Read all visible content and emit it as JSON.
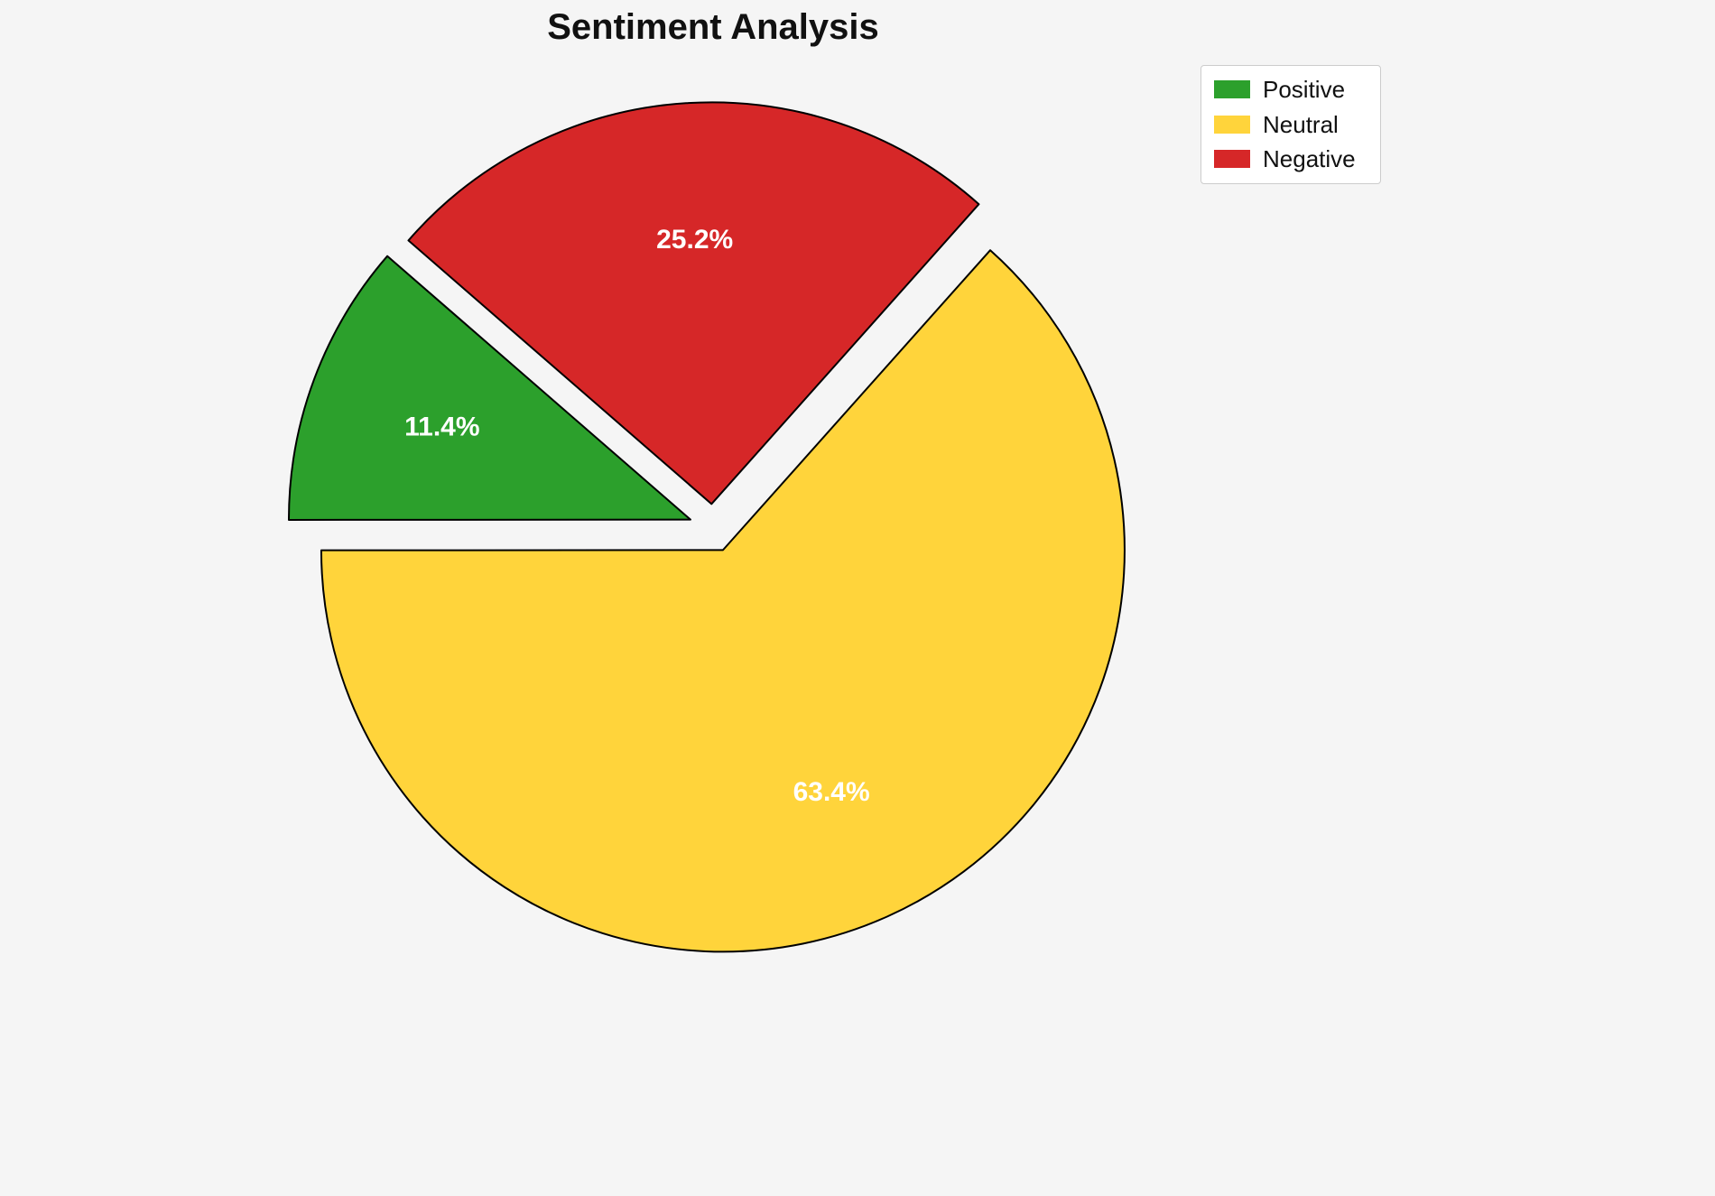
{
  "figure": {
    "background": "#f5f5f5"
  },
  "chart_data": {
    "type": "pie",
    "title": "Sentiment Analysis",
    "labels": [
      "Positive",
      "Neutral",
      "Negative"
    ],
    "values": [
      11.4,
      63.4,
      25.2
    ],
    "percent_labels": [
      "11.4%",
      "63.4%",
      "25.2%"
    ],
    "colors": [
      "#2ca02c",
      "#ffd43b",
      "#d62728"
    ],
    "edge_color": "#000000",
    "start_angle": 139,
    "counterclock": true,
    "explode": 0.06,
    "legend_position": "upper right",
    "label_color": "#ffffff"
  }
}
